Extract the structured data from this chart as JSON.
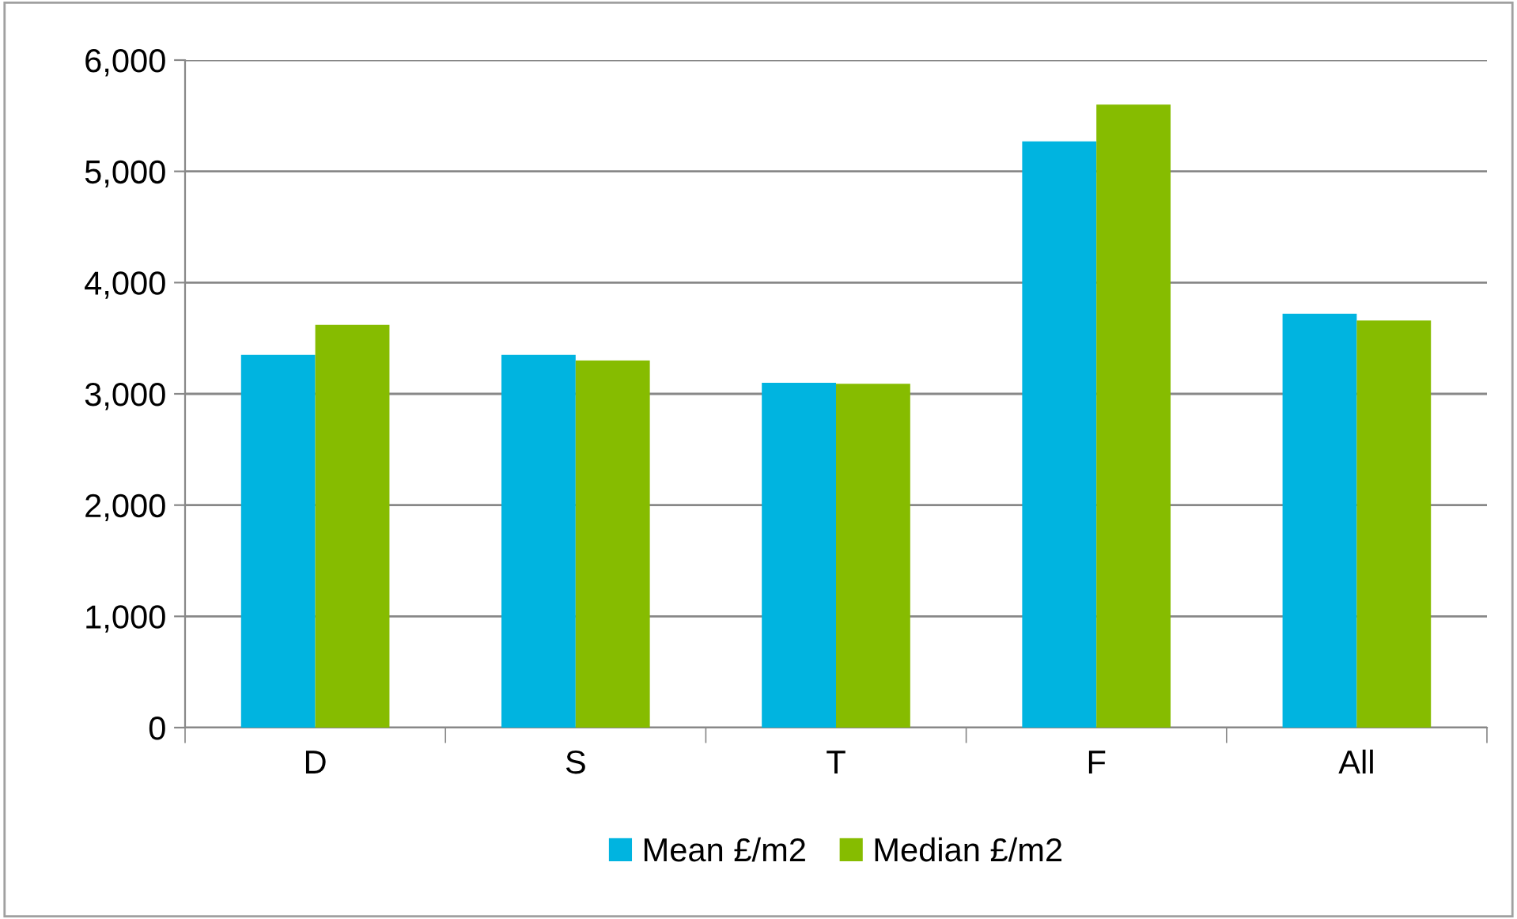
{
  "chart_data": {
    "type": "bar",
    "categories": [
      "D",
      "S",
      "T",
      "F",
      "All"
    ],
    "series": [
      {
        "name": "Mean £/m2",
        "color": "#00b4e0",
        "values": [
          3350,
          3350,
          3100,
          5270,
          3720
        ]
      },
      {
        "name": "Median £/m2",
        "color": "#86bc00",
        "values": [
          3620,
          3300,
          3090,
          5600,
          3660
        ]
      }
    ],
    "ylim": [
      0,
      6000
    ],
    "yticks": [
      0,
      {
        "value": 1000,
        "label": "1,000"
      },
      {
        "value": 2000,
        "label": "2,000"
      },
      {
        "value": 3000,
        "label": "3,000"
      },
      {
        "value": 4000,
        "label": "4,000"
      },
      {
        "value": 5000,
        "label": "5,000"
      },
      {
        "value": 6000,
        "label": "6,000"
      }
    ],
    "grid": "y",
    "legend": "bottom"
  }
}
